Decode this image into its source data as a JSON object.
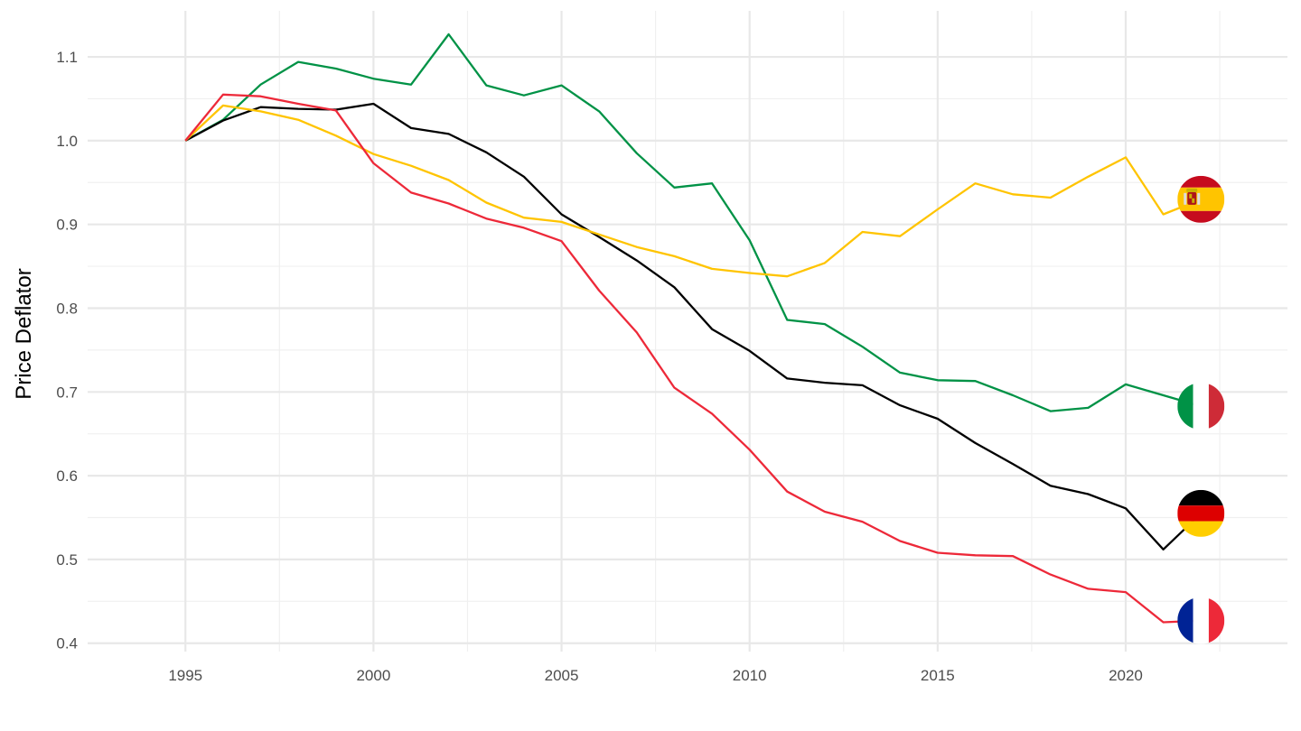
{
  "chart_data": {
    "type": "line",
    "title": "",
    "xlabel": "",
    "ylabel": "Price Deflator",
    "xlim": [
      1992.4,
      2024.3
    ],
    "ylim": [
      0.39,
      1.155
    ],
    "x_ticks": [
      1995,
      2000,
      2005,
      2010,
      2015,
      2020
    ],
    "x_minor_ticks": [
      1997.5,
      2002.5,
      2007.5,
      2012.5,
      2017.5,
      2022.5
    ],
    "y_ticks": [
      0.4,
      0.5,
      0.6,
      0.7,
      0.8,
      0.9,
      1.0,
      1.1
    ],
    "y_minor_ticks": [
      0.45,
      0.55,
      0.65,
      0.75,
      0.85,
      0.95,
      1.05
    ],
    "x_tick_labels": [
      "1995",
      "2000",
      "2005",
      "2010",
      "2015",
      "2020"
    ],
    "y_tick_labels": [
      "0.4",
      "0.5",
      "0.6",
      "0.7",
      "0.8",
      "0.9",
      "1.0",
      "1.1"
    ],
    "grid": true,
    "legend": "none",
    "x": [
      1995,
      1996,
      1997,
      1998,
      1999,
      2000,
      2001,
      2002,
      2003,
      2004,
      2005,
      2006,
      2007,
      2008,
      2009,
      2010,
      2011,
      2012,
      2013,
      2014,
      2015,
      2016,
      2017,
      2018,
      2019,
      2020,
      2021,
      2022
    ],
    "series": [
      {
        "flag": "italy-flag",
        "color": "#009246",
        "values": [
          1.0,
          1.025,
          1.067,
          1.094,
          1.086,
          1.074,
          1.067,
          1.127,
          1.066,
          1.054,
          1.066,
          1.035,
          0.985,
          0.944,
          0.949,
          0.881,
          0.786,
          0.781,
          0.754,
          0.723,
          0.714,
          0.713,
          0.696,
          0.677,
          0.681,
          0.709,
          0.696,
          0.683
        ]
      },
      {
        "flag": "germany-flag",
        "color": "#000000",
        "values": [
          1.0,
          1.024,
          1.04,
          1.038,
          1.037,
          1.044,
          1.015,
          1.008,
          0.986,
          0.957,
          0.912,
          0.885,
          0.857,
          0.825,
          0.775,
          0.749,
          0.716,
          0.711,
          0.708,
          0.684,
          0.668,
          0.639,
          0.614,
          0.588,
          0.578,
          0.561,
          0.512,
          0.555
        ]
      },
      {
        "flag": "spain-flag",
        "color": "#FFC400",
        "values": [
          1.0,
          1.042,
          1.035,
          1.025,
          1.006,
          0.984,
          0.97,
          0.953,
          0.926,
          0.908,
          0.903,
          0.888,
          0.873,
          0.862,
          0.847,
          0.842,
          0.838,
          0.854,
          0.891,
          0.886,
          0.918,
          0.949,
          0.936,
          0.932,
          0.957,
          0.98,
          0.912,
          0.93
        ]
      },
      {
        "flag": "france-flag",
        "color": "#ED2939",
        "values": [
          1.0,
          1.055,
          1.053,
          1.044,
          1.036,
          0.973,
          0.938,
          0.925,
          0.907,
          0.896,
          0.88,
          0.821,
          0.771,
          0.705,
          0.674,
          0.631,
          0.581,
          0.557,
          0.545,
          0.522,
          0.508,
          0.505,
          0.504,
          0.482,
          0.465,
          0.461,
          0.425,
          0.427
        ]
      }
    ]
  }
}
